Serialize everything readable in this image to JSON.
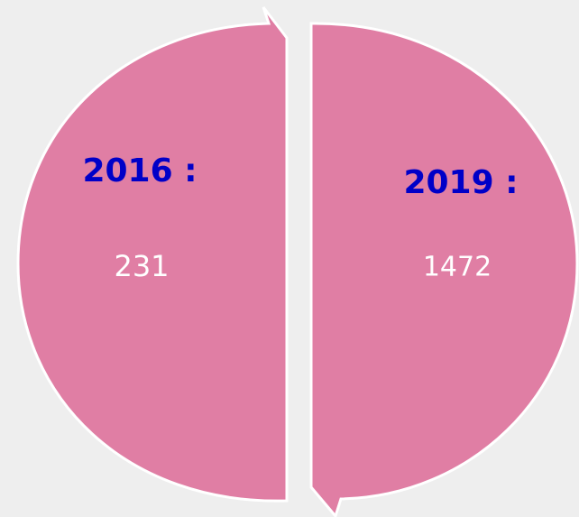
{
  "items": [
    {
      "label": "2016 :",
      "value": 231
    },
    {
      "label": "2019 :",
      "value": 1472
    }
  ]
}
